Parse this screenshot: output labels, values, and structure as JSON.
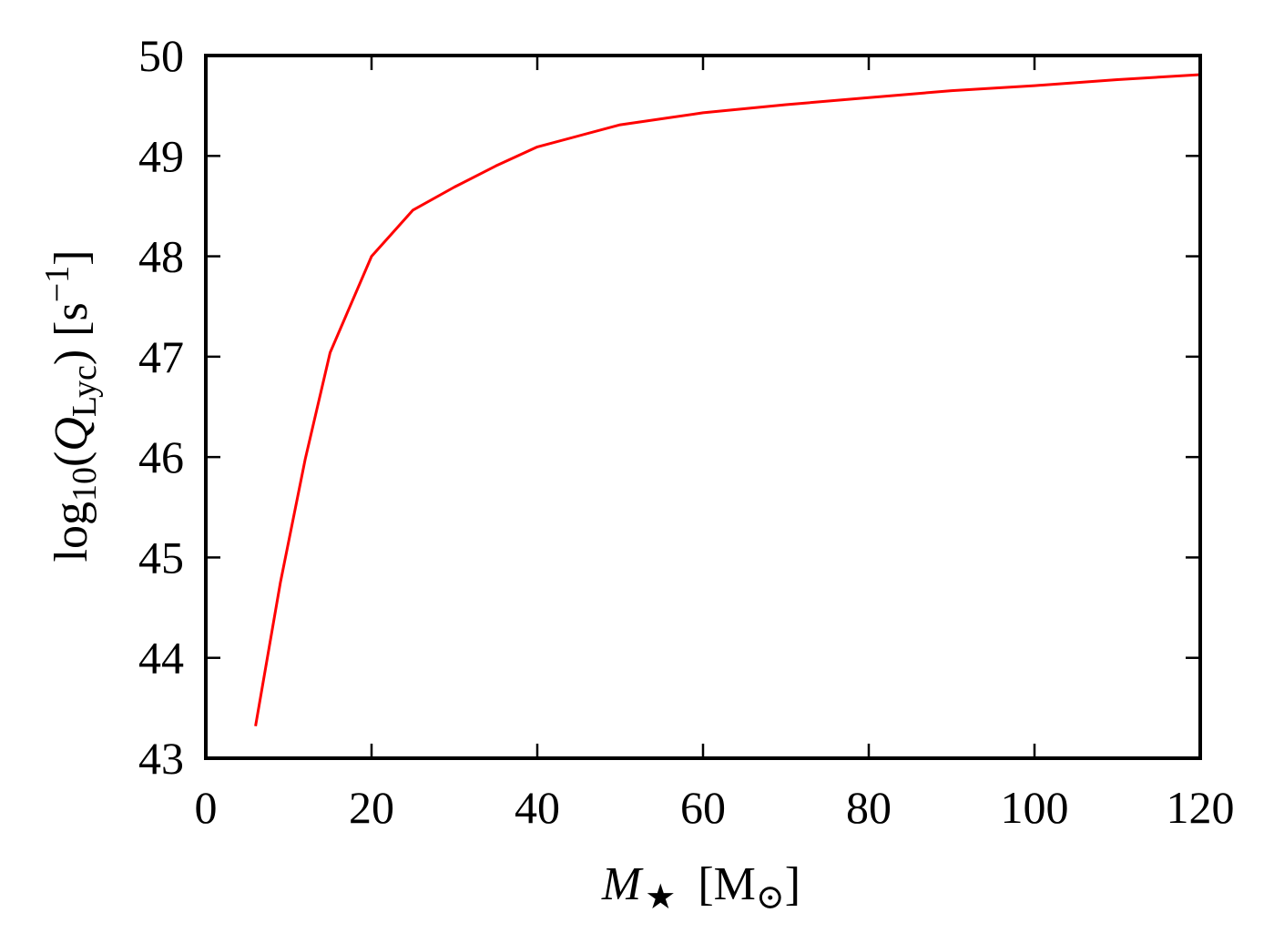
{
  "chart_data": {
    "type": "line",
    "title": "",
    "xlabel": {
      "symbol": "M",
      "subscript": "★",
      "unit_open": "[M",
      "unit_subscript": "⊙",
      "unit_close": "]"
    },
    "ylabel": {
      "prefix": "log",
      "base": "10",
      "open": "(",
      "symbol": "Q",
      "symbol_subscript": "Lyc",
      "close": ")",
      "unit_open": "[s",
      "unit_exponent": "−1",
      "unit_close": "]"
    },
    "xlim": [
      0,
      120
    ],
    "ylim": [
      43,
      50
    ],
    "xticks": [
      0,
      20,
      40,
      60,
      80,
      100,
      120
    ],
    "yticks": [
      43,
      44,
      45,
      46,
      47,
      48,
      49,
      50
    ],
    "grid": false,
    "series": [
      {
        "color": "#ff0000",
        "x": [
          6,
          9,
          12,
          15,
          20,
          25,
          30,
          35,
          40,
          50,
          60,
          70,
          80,
          90,
          100,
          110,
          120
        ],
        "y": [
          43.32,
          44.75,
          45.98,
          47.04,
          48.0,
          48.46,
          48.69,
          48.9,
          49.09,
          49.31,
          49.43,
          49.51,
          49.58,
          49.65,
          49.7,
          49.76,
          49.81
        ]
      }
    ]
  }
}
